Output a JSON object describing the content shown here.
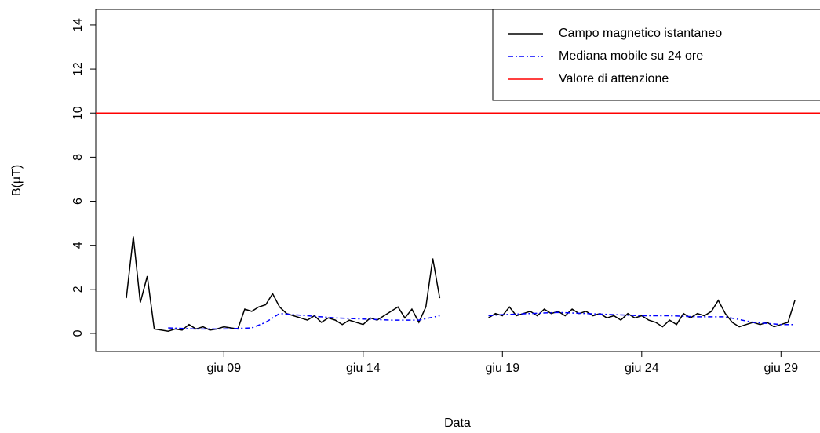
{
  "chart_data": {
    "type": "line",
    "x_label": "Data",
    "y_label": "B(µT)",
    "xlim": [
      4.4,
      30.4
    ],
    "ylim": [
      -0.82,
      14.71
    ],
    "xticks": [
      {
        "value": 9,
        "label": "giu 09"
      },
      {
        "value": 14,
        "label": "giu 14"
      },
      {
        "value": 19,
        "label": "giu 19"
      },
      {
        "value": 24,
        "label": "giu 24"
      },
      {
        "value": 29,
        "label": "giu 29"
      }
    ],
    "yticks": [
      0,
      2,
      4,
      6,
      8,
      10,
      12,
      14
    ],
    "legend": "top-right",
    "series": [
      {
        "name": "Campo magnetico istantaneo",
        "color": "#000000",
        "dash": "solid",
        "x": [
          5.5,
          5.75,
          6.0,
          6.25,
          6.5,
          6.75,
          7.0,
          7.25,
          7.5,
          7.75,
          8.0,
          8.25,
          8.5,
          8.75,
          9.0,
          9.25,
          9.5,
          9.75,
          10.0,
          10.25,
          10.5,
          10.75,
          11.0,
          11.25,
          11.5,
          11.75,
          12.0,
          12.25,
          12.5,
          12.75,
          13.0,
          13.25,
          13.5,
          13.75,
          14.0,
          14.25,
          14.5,
          14.75,
          15.0,
          15.25,
          15.5,
          15.75,
          16.0,
          16.25,
          16.5,
          16.75,
          17.5,
          18.5,
          18.75,
          19.0,
          19.25,
          19.5,
          19.75,
          20.0,
          20.25,
          20.5,
          20.75,
          21.0,
          21.25,
          21.5,
          21.75,
          22.0,
          22.25,
          22.5,
          22.75,
          23.0,
          23.25,
          23.5,
          23.75,
          24.0,
          24.25,
          24.5,
          24.75,
          25.0,
          25.25,
          25.5,
          25.75,
          26.0,
          26.25,
          26.5,
          26.75,
          27.0,
          27.25,
          27.5,
          27.75,
          28.0,
          28.25,
          28.5,
          28.75,
          29.0,
          29.25,
          29.5
        ],
        "values": [
          1.6,
          4.4,
          1.4,
          2.6,
          0.2,
          0.15,
          0.1,
          0.2,
          0.15,
          0.4,
          0.2,
          0.3,
          0.15,
          0.2,
          0.3,
          0.25,
          0.2,
          1.1,
          1.0,
          1.2,
          1.3,
          1.8,
          1.2,
          0.9,
          0.8,
          0.7,
          0.6,
          0.8,
          0.5,
          0.7,
          0.6,
          0.4,
          0.6,
          0.5,
          0.4,
          0.7,
          0.6,
          0.8,
          1.0,
          1.2,
          0.7,
          1.1,
          0.5,
          1.2,
          3.4,
          1.6,
          null,
          0.7,
          0.9,
          0.8,
          1.2,
          0.8,
          0.9,
          1.0,
          0.8,
          1.1,
          0.9,
          1.0,
          0.8,
          1.1,
          0.9,
          1.0,
          0.8,
          0.9,
          0.7,
          0.8,
          0.6,
          0.9,
          0.7,
          0.8,
          0.6,
          0.5,
          0.3,
          0.6,
          0.4,
          0.9,
          0.7,
          0.9,
          0.8,
          1.0,
          1.5,
          0.9,
          0.5,
          0.3,
          0.4,
          0.5,
          0.4,
          0.5,
          0.3,
          0.4,
          0.5,
          1.5
        ]
      },
      {
        "name": "Mediana mobile su 24 ore",
        "color": "#0000ff",
        "dash": "dashdot",
        "x": [
          7,
          8,
          9,
          10,
          10.5,
          11,
          12,
          13,
          14,
          15,
          16,
          16.75,
          17.5,
          18.5,
          19,
          20,
          21,
          22,
          23,
          24,
          25,
          26,
          27,
          28,
          29,
          29.5
        ],
        "values": [
          0.25,
          0.2,
          0.2,
          0.25,
          0.5,
          0.9,
          0.8,
          0.7,
          0.65,
          0.6,
          0.6,
          0.8,
          null,
          0.8,
          0.85,
          0.9,
          0.95,
          0.9,
          0.85,
          0.8,
          0.8,
          0.75,
          0.75,
          0.5,
          0.4,
          0.4
        ]
      }
    ],
    "hlines": [
      {
        "name": "Valore di attenzione",
        "color": "#ff0000",
        "value": 10
      }
    ]
  }
}
